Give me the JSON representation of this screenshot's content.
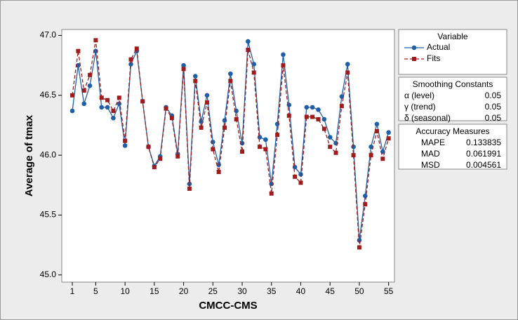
{
  "chart_data": {
    "type": "line",
    "x_label": "CMCC-CMS",
    "y_label": "Average of tmax",
    "x": [
      1,
      2,
      3,
      4,
      5,
      6,
      7,
      8,
      9,
      10,
      11,
      12,
      13,
      14,
      15,
      16,
      17,
      18,
      19,
      20,
      21,
      22,
      23,
      24,
      25,
      26,
      27,
      28,
      29,
      30,
      31,
      32,
      33,
      34,
      35,
      36,
      37,
      38,
      39,
      40,
      41,
      42,
      43,
      44,
      45,
      46,
      47,
      48,
      49,
      50,
      51,
      52,
      53,
      54,
      55
    ],
    "xlim": [
      -0.8,
      56
    ],
    "xticks": [
      1,
      5,
      10,
      15,
      20,
      25,
      30,
      35,
      40,
      45,
      50,
      55
    ],
    "ylim": [
      44.94,
      47.05
    ],
    "yticks": [
      {
        "value": 45,
        "label": "45.0"
      },
      45.5,
      {
        "value": 46,
        "label": "46.0"
      },
      46.5,
      {
        "value": 47,
        "label": "47.0"
      }
    ],
    "grid": false,
    "legend_title": "Variable",
    "series": [
      {
        "name": "Actual",
        "color": "#1f5fa8",
        "marker": "circle",
        "dashed": false,
        "values": [
          46.37,
          46.75,
          46.43,
          46.58,
          46.87,
          46.4,
          46.4,
          46.31,
          46.43,
          46.08,
          46.76,
          46.87,
          46.45,
          46.07,
          45.91,
          45.99,
          46.4,
          46.33,
          46.01,
          46.75,
          45.76,
          46.66,
          46.28,
          46.5,
          46.11,
          45.92,
          46.29,
          46.68,
          46.37,
          46.1,
          46.95,
          46.76,
          46.15,
          46.13,
          45.76,
          46.26,
          46.84,
          46.42,
          45.9,
          45.84,
          46.4,
          46.4,
          46.38,
          46.3,
          46.15,
          46.1,
          46.49,
          46.76,
          46.07,
          45.29,
          45.66,
          46.07,
          46.26,
          46.03,
          46.19
        ]
      },
      {
        "name": "Fits",
        "color": "#a01c1c",
        "marker": "square",
        "dashed": true,
        "values": [
          46.5,
          46.87,
          46.54,
          46.67,
          46.96,
          46.48,
          46.46,
          46.37,
          46.48,
          46.12,
          46.8,
          46.89,
          46.45,
          46.07,
          45.9,
          45.97,
          46.39,
          46.31,
          45.99,
          46.72,
          45.72,
          46.62,
          46.23,
          46.44,
          46.05,
          45.86,
          46.23,
          46.62,
          46.3,
          46.03,
          46.88,
          46.69,
          46.07,
          46.05,
          45.68,
          46.17,
          46.75,
          46.33,
          45.82,
          45.77,
          46.32,
          46.32,
          46.3,
          46.22,
          46.07,
          46.02,
          46.41,
          46.69,
          46.0,
          45.23,
          45.59,
          46.0,
          46.2,
          45.97,
          46.14
        ]
      }
    ],
    "smoothing": {
      "title": "Smoothing Constants",
      "rows": [
        [
          "α (level)",
          0.05
        ],
        [
          "γ (trend)",
          0.05
        ],
        [
          "δ (seasonal)",
          0.05
        ]
      ]
    },
    "accuracy": {
      "title": "Accuracy Measures",
      "rows": [
        [
          "MAPE",
          0.133835
        ],
        [
          "MAD",
          0.061991
        ],
        [
          "MSD",
          0.004561
        ]
      ]
    }
  }
}
